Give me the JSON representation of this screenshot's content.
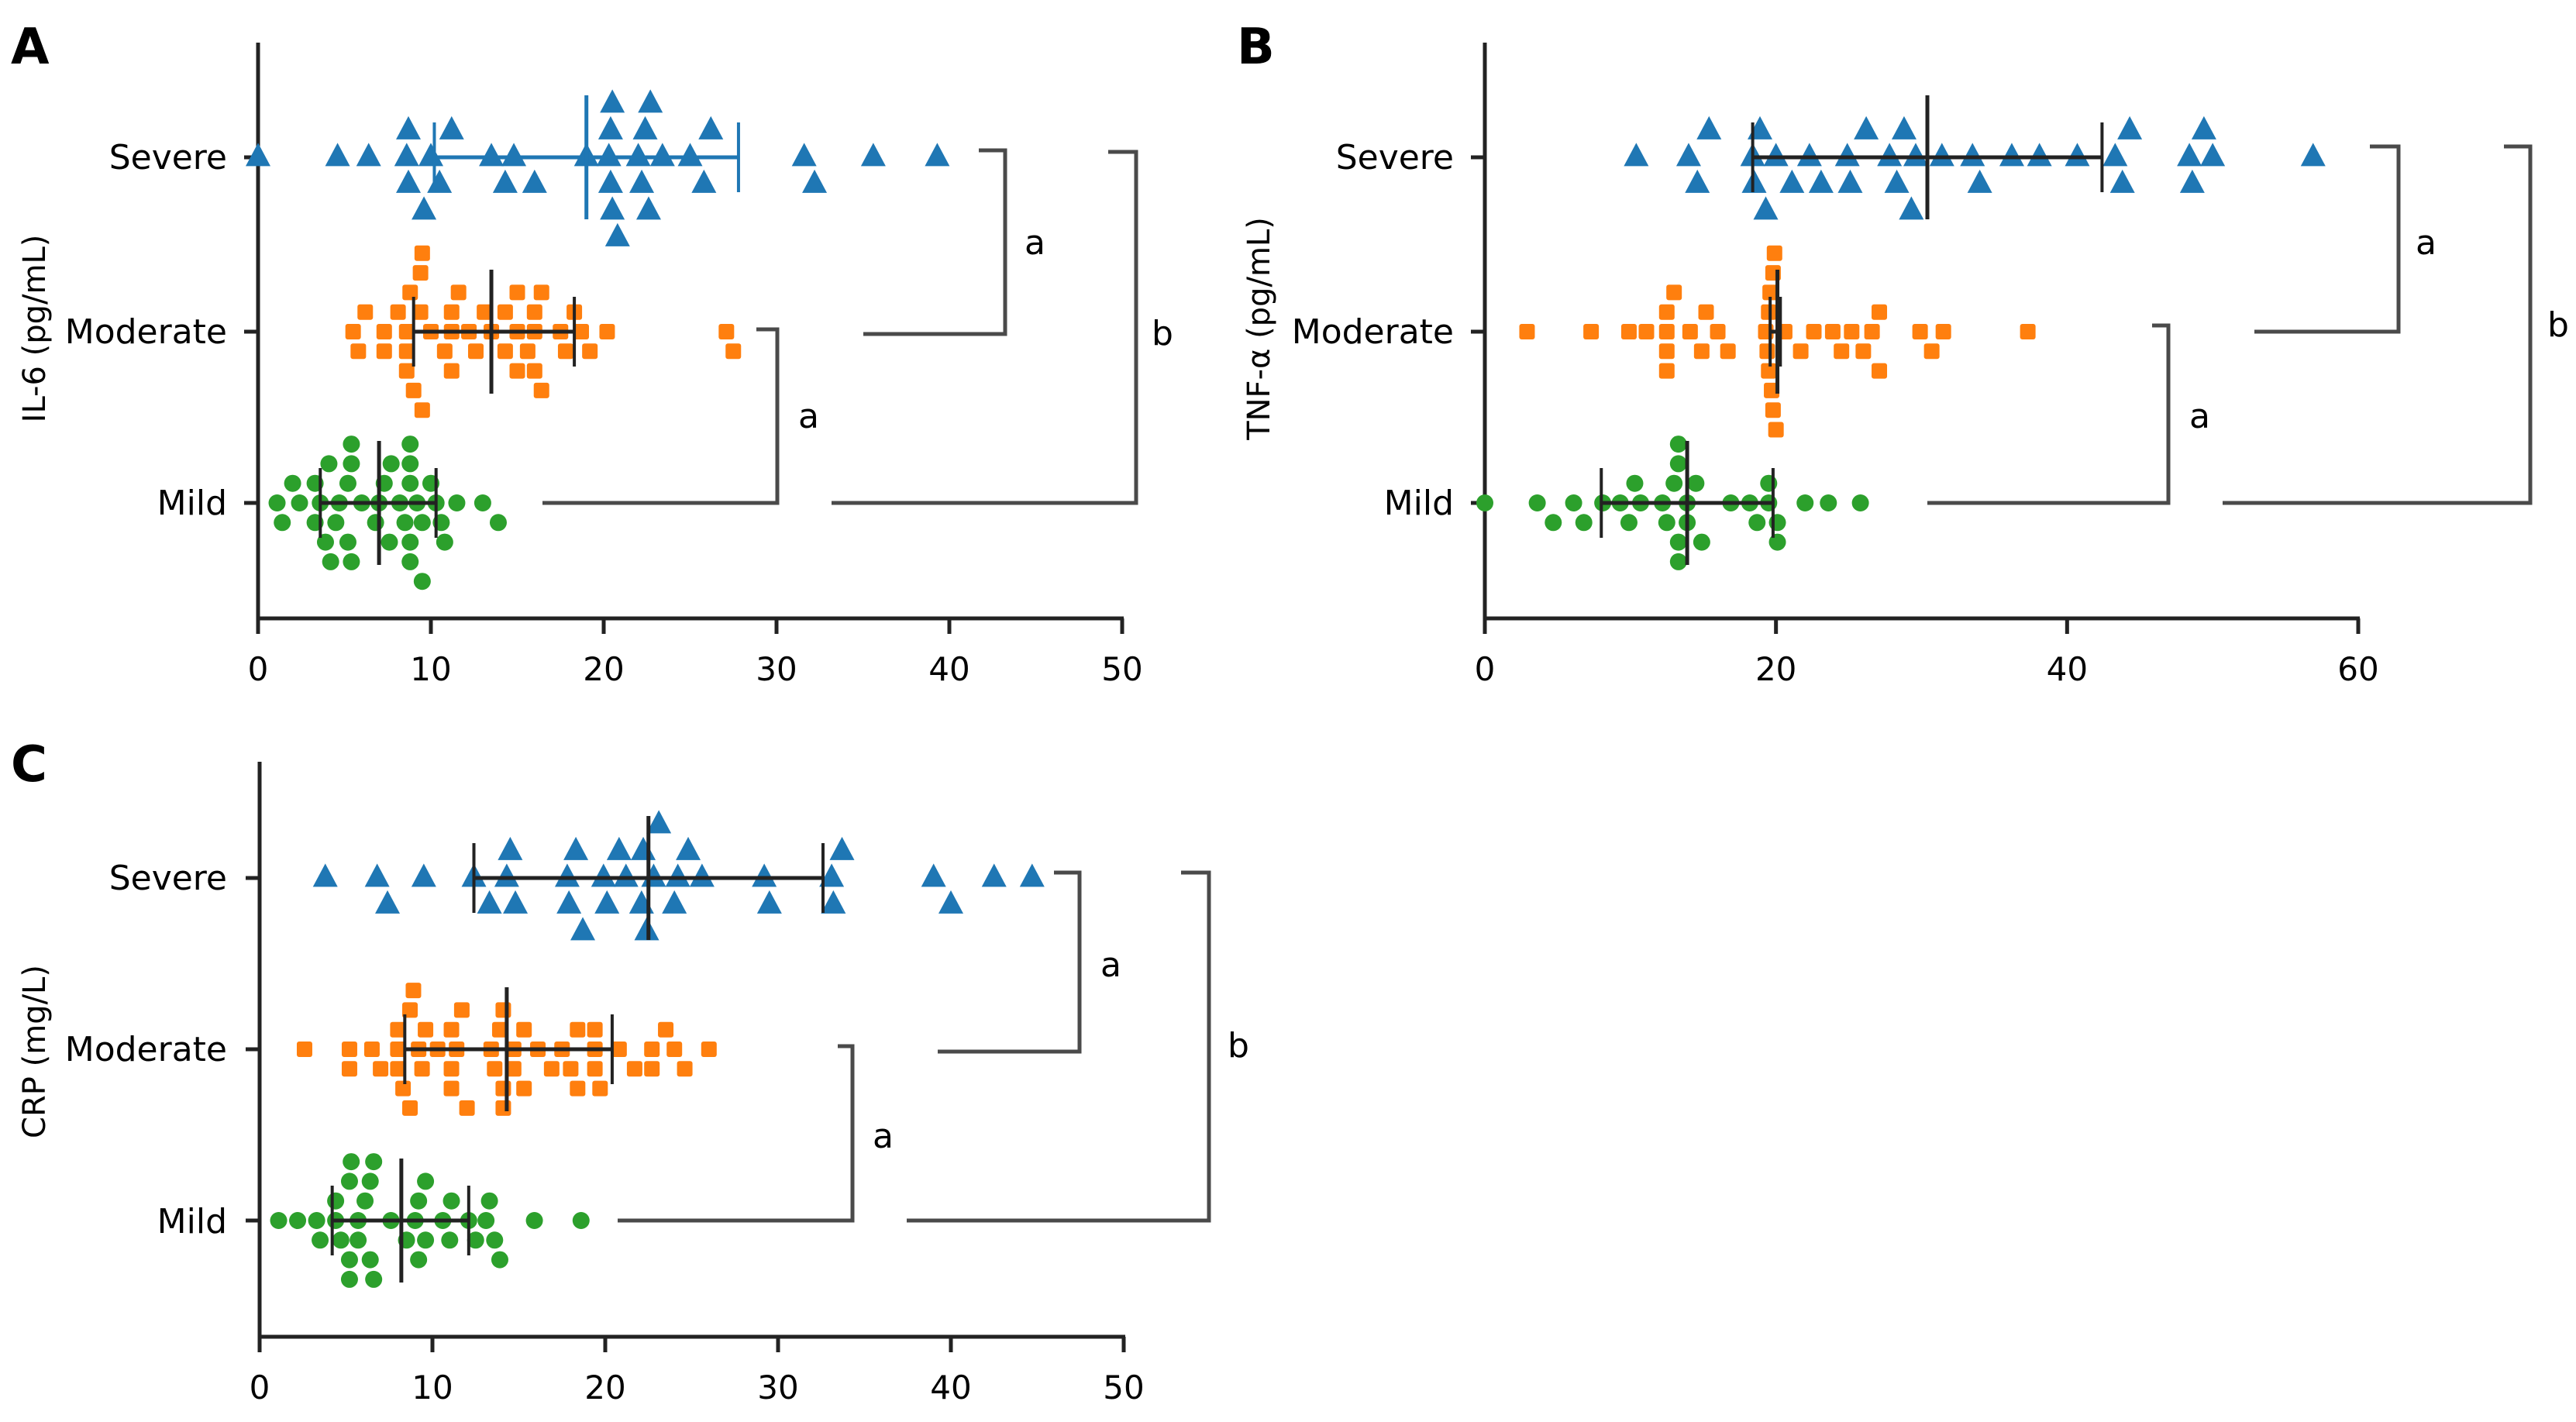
{
  "figure": {
    "panels": [
      "A",
      "B",
      "C"
    ]
  },
  "chart_data": [
    {
      "panel": "A",
      "type": "scatter",
      "subtype": "horizontal dot plot with median and interquartile range",
      "title": "",
      "xlabel": "",
      "ylabel": "IL-6 (pg/mL)",
      "xlim": [
        0,
        50
      ],
      "xticks": [
        0,
        10,
        20,
        30,
        40,
        50
      ],
      "xtick_labels": [
        "0",
        "10",
        "20",
        "30",
        "40",
        "50"
      ],
      "categories": [
        "Severe",
        "Moderate",
        "Mild"
      ],
      "grid": false,
      "legend": "none",
      "series": [
        {
          "name": "Severe",
          "marker": "triangle",
          "color": "#1f77b4",
          "errorbar_color": "#1f77b4",
          "median": 19.0,
          "q1": 10.2,
          "q3": 27.8,
          "values": [
            0.0,
            4.6,
            6.4,
            8.6,
            8.7,
            8.7,
            9.6,
            10.0,
            10.5,
            11.2,
            13.5,
            14.3,
            14.8,
            16.0,
            19.0,
            20.3,
            20.4,
            20.4,
            20.5,
            20.5,
            20.8,
            22.0,
            22.2,
            22.4,
            22.6,
            22.7,
            23.4,
            25.0,
            25.8,
            26.2,
            31.6,
            32.2,
            35.6,
            39.3
          ]
        },
        {
          "name": "Moderate",
          "marker": "square",
          "color": "#ff7f0e",
          "errorbar_color": "#222222",
          "median": 13.5,
          "q1": 9.0,
          "q3": 18.3,
          "values": [
            5.5,
            5.8,
            6.2,
            7.3,
            7.3,
            8.1,
            8.6,
            8.6,
            8.6,
            8.8,
            9.0,
            9.4,
            9.4,
            9.5,
            9.5,
            10.0,
            10.8,
            11.2,
            11.2,
            11.2,
            11.6,
            12.2,
            12.6,
            13.1,
            13.5,
            14.3,
            14.3,
            15.0,
            15.0,
            15.0,
            15.6,
            16.0,
            16.0,
            16.0,
            16.4,
            16.4,
            17.5,
            17.8,
            18.3,
            18.7,
            19.2,
            20.2,
            27.1,
            27.5
          ]
        },
        {
          "name": "Mild",
          "marker": "circle",
          "color": "#2ca02c",
          "errorbar_color": "#222222",
          "median": 7.0,
          "q1": 3.6,
          "q3": 10.3,
          "values": [
            1.1,
            1.4,
            2.0,
            2.4,
            3.3,
            3.3,
            3.6,
            3.9,
            4.1,
            4.2,
            4.5,
            4.7,
            5.2,
            5.2,
            5.4,
            5.4,
            5.4,
            6.0,
            6.8,
            7.0,
            7.3,
            7.6,
            7.7,
            8.2,
            8.5,
            8.8,
            8.8,
            8.8,
            8.8,
            8.8,
            9.2,
            9.5,
            9.5,
            10.0,
            10.3,
            10.6,
            10.8,
            11.5,
            13.0,
            13.9
          ]
        }
      ],
      "comparisons": [
        {
          "groups": [
            "Severe",
            "Moderate"
          ],
          "label": "a"
        },
        {
          "groups": [
            "Moderate",
            "Mild"
          ],
          "label": "a"
        },
        {
          "groups": [
            "Severe",
            "Mild"
          ],
          "label": "b"
        }
      ]
    },
    {
      "panel": "B",
      "type": "scatter",
      "subtype": "horizontal dot plot with median and interquartile range",
      "title": "",
      "xlabel": "",
      "ylabel": "TNF-α (pg/mL)",
      "xlim": [
        0,
        60
      ],
      "xticks": [
        0,
        20,
        40,
        60
      ],
      "xtick_labels": [
        "0",
        "20",
        "40",
        "60"
      ],
      "categories": [
        "Severe",
        "Moderate",
        "Mild"
      ],
      "grid": false,
      "legend": "none",
      "series": [
        {
          "name": "Severe",
          "marker": "triangle",
          "color": "#1f77b4",
          "errorbar_color": "#222222",
          "median": 30.4,
          "q1": 18.4,
          "q3": 42.4,
          "values": [
            10.4,
            14.0,
            14.6,
            15.4,
            18.4,
            18.5,
            18.9,
            19.3,
            20.0,
            21.1,
            22.3,
            23.1,
            24.9,
            25.1,
            26.2,
            27.8,
            28.3,
            28.8,
            29.3,
            29.6,
            31.4,
            33.5,
            34.0,
            36.2,
            38.1,
            40.7,
            43.3,
            43.8,
            44.3,
            48.4,
            48.6,
            49.4,
            50.0,
            56.9
          ]
        },
        {
          "name": "Moderate",
          "marker": "square",
          "color": "#ff7f0e",
          "errorbar_color": "#222222",
          "median": 20.1,
          "q1": 19.6,
          "q3": 20.3,
          "values": [
            2.9,
            7.3,
            9.9,
            11.1,
            12.5,
            12.5,
            12.5,
            12.5,
            13.0,
            14.1,
            14.9,
            15.2,
            16.0,
            16.7,
            19.3,
            19.4,
            19.5,
            19.5,
            19.6,
            19.7,
            19.8,
            19.8,
            19.9,
            20.0,
            20.6,
            21.7,
            22.6,
            23.9,
            24.5,
            25.2,
            26.0,
            26.6,
            27.1,
            27.1,
            29.9,
            30.7,
            31.5,
            37.3
          ]
        },
        {
          "name": "Mild",
          "marker": "circle",
          "color": "#2ca02c",
          "errorbar_color": "#222222",
          "median": 13.9,
          "q1": 8.0,
          "q3": 19.8,
          "values": [
            0.0,
            3.6,
            4.7,
            6.1,
            6.8,
            8.1,
            9.3,
            9.9,
            10.3,
            10.7,
            12.2,
            12.5,
            13.0,
            13.3,
            13.3,
            13.3,
            13.3,
            13.9,
            13.9,
            14.5,
            14.9,
            16.9,
            18.2,
            18.7,
            19.5,
            19.5,
            20.1,
            20.1,
            22.0,
            23.6,
            25.8
          ]
        }
      ],
      "comparisons": [
        {
          "groups": [
            "Severe",
            "Moderate"
          ],
          "label": "a"
        },
        {
          "groups": [
            "Moderate",
            "Mild"
          ],
          "label": "a"
        },
        {
          "groups": [
            "Severe",
            "Mild"
          ],
          "label": "b"
        }
      ]
    },
    {
      "panel": "C",
      "type": "scatter",
      "subtype": "horizontal dot plot with median and interquartile range",
      "title": "",
      "xlabel": "",
      "ylabel": "CRP (mg/L)",
      "xlim": [
        0,
        50
      ],
      "xticks": [
        0,
        10,
        20,
        30,
        40,
        50
      ],
      "xtick_labels": [
        "0",
        "10",
        "20",
        "30",
        "40",
        "50"
      ],
      "categories": [
        "Severe",
        "Moderate",
        "Mild"
      ],
      "grid": false,
      "legend": "none",
      "series": [
        {
          "name": "Severe",
          "marker": "triangle",
          "color": "#1f77b4",
          "errorbar_color": "#222222",
          "median": 22.5,
          "q1": 12.4,
          "q3": 32.6,
          "values": [
            3.8,
            6.8,
            7.4,
            9.5,
            12.4,
            13.3,
            14.3,
            14.5,
            14.8,
            17.8,
            17.9,
            18.3,
            18.7,
            19.9,
            20.1,
            20.8,
            21.2,
            22.1,
            22.2,
            22.4,
            22.8,
            23.1,
            24.0,
            24.2,
            24.8,
            25.6,
            29.2,
            29.5,
            33.1,
            33.2,
            33.7,
            39.0,
            40.0,
            42.5,
            44.7
          ]
        },
        {
          "name": "Moderate",
          "marker": "square",
          "color": "#ff7f0e",
          "errorbar_color": "#222222",
          "median": 14.3,
          "q1": 8.4,
          "q3": 20.4,
          "values": [
            2.6,
            5.2,
            5.2,
            6.5,
            7.0,
            8.0,
            8.0,
            8.0,
            8.3,
            8.7,
            8.7,
            8.9,
            9.2,
            9.4,
            9.6,
            10.3,
            11.1,
            11.1,
            11.1,
            11.4,
            11.7,
            12.0,
            13.4,
            13.6,
            13.9,
            14.1,
            14.1,
            14.1,
            14.7,
            14.7,
            15.3,
            15.3,
            16.1,
            16.9,
            17.5,
            18.0,
            18.4,
            18.4,
            19.4,
            19.4,
            19.4,
            19.7,
            20.8,
            21.7,
            22.7,
            22.7,
            23.5,
            24.0,
            24.6,
            26.0
          ]
        },
        {
          "name": "Mild",
          "marker": "circle",
          "color": "#2ca02c",
          "errorbar_color": "#222222",
          "median": 8.2,
          "q1": 4.2,
          "q3": 12.1,
          "values": [
            1.1,
            2.2,
            3.3,
            3.5,
            4.4,
            4.4,
            4.7,
            5.2,
            5.2,
            5.2,
            5.3,
            5.7,
            5.7,
            6.1,
            6.4,
            6.4,
            6.6,
            6.6,
            7.6,
            8.5,
            9.0,
            9.2,
            9.2,
            9.6,
            9.6,
            10.6,
            11.0,
            11.1,
            12.1,
            12.5,
            13.1,
            13.3,
            13.6,
            13.9,
            15.9,
            18.6
          ]
        }
      ],
      "comparisons": [
        {
          "groups": [
            "Severe",
            "Moderate"
          ],
          "label": "a"
        },
        {
          "groups": [
            "Moderate",
            "Mild"
          ],
          "label": "a"
        },
        {
          "groups": [
            "Severe",
            "Mild"
          ],
          "label": "b"
        }
      ]
    }
  ]
}
